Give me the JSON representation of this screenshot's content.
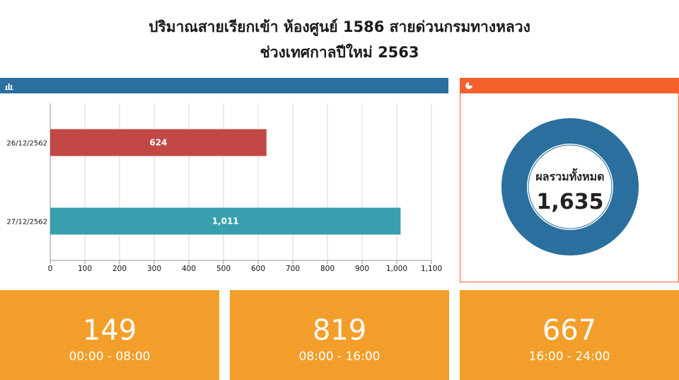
{
  "header": {
    "title_line1": "ปริมาณสายเรียกเข้า ห้องศูนย์ 1586 สายด่วนกรมทางหลวง",
    "title_line2": "ช่วงเทศกาลปีใหม่ 2563"
  },
  "colors": {
    "left_header": "#2a6f9d",
    "right_header": "#f4602c",
    "bar_1": "#c24845",
    "bar_2": "#389fae",
    "donut": "#2a6f9d",
    "tile": "#f39e2a"
  },
  "chart_data": [
    {
      "type": "bar",
      "orientation": "horizontal",
      "categories": [
        "26/12/2562",
        "27/12/2562"
      ],
      "values": [
        624,
        1011
      ],
      "value_labels": [
        "624",
        "1,011"
      ],
      "xlim": [
        0,
        1100
      ],
      "xticks": [
        0,
        100,
        200,
        300,
        400,
        500,
        600,
        700,
        800,
        900,
        1000,
        1100
      ],
      "xtick_labels": [
        "0",
        "100",
        "200",
        "300",
        "400",
        "500",
        "600",
        "700",
        "800",
        "900",
        "1,000",
        "1,100"
      ],
      "grid": true
    },
    {
      "type": "pie",
      "variant": "donut",
      "center_label": "ผลรวมทั้งหมด",
      "center_value": "1,635",
      "values": [
        1635
      ]
    }
  ],
  "tiles": [
    {
      "value": "149",
      "range": "00:00 - 08:00"
    },
    {
      "value": "819",
      "range": "08:00 - 16:00"
    },
    {
      "value": "667",
      "range": "16:00 - 24:00"
    }
  ]
}
